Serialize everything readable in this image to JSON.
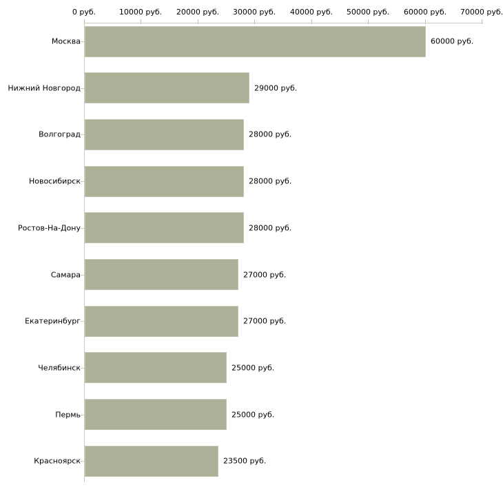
{
  "chart_data": {
    "type": "bar",
    "orientation": "horizontal",
    "title": "",
    "xlabel": "",
    "ylabel": "",
    "categories": [
      "Москва",
      "Нижний Новгород",
      "Волгоград",
      "Новосибирск",
      "Ростов-На-Дону",
      "Самара",
      "Екатеринбург",
      "Челябинск",
      "Пермь",
      "Красноярск"
    ],
    "values": [
      60000,
      29000,
      28000,
      28000,
      28000,
      27000,
      27000,
      25000,
      25000,
      23500
    ],
    "value_labels": [
      "60000 руб.",
      "29000 руб.",
      "28000 руб.",
      "28000 руб.",
      "28000 руб.",
      "27000 руб.",
      "27000 руб.",
      "25000 руб.",
      "25000 руб.",
      "23500 руб."
    ],
    "x_ticks": [
      0,
      10000,
      20000,
      30000,
      40000,
      50000,
      60000,
      70000
    ],
    "x_tick_labels": [
      "0 руб.",
      "10000 руб.",
      "20000 руб.",
      "30000 руб.",
      "40000 руб.",
      "50000 руб.",
      "60000 руб.",
      "70000 руб."
    ],
    "xlim": [
      0,
      70000
    ],
    "axis_position": "top",
    "grid": false,
    "legend": false,
    "colors": {
      "bar_fill": "#abb096",
      "bar_edge": "#c2c6b2",
      "axis_line": "#c9c9c9",
      "tick_mark": "#cdc69e",
      "text": "#000000",
      "background": "#ffffff"
    }
  }
}
